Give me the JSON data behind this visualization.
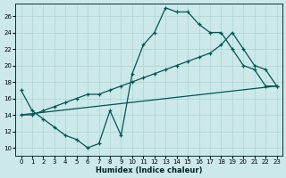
{
  "xlabel": "Humidex (Indice chaleur)",
  "bg_color": "#cce8e8",
  "line_color": "#005555",
  "grid_color": "#aad4d4",
  "xlim": [
    -0.5,
    23.5
  ],
  "ylim": [
    9.0,
    27.5
  ],
  "yticks": [
    10,
    12,
    14,
    16,
    18,
    20,
    22,
    24,
    26
  ],
  "xticks": [
    0,
    1,
    2,
    3,
    4,
    5,
    6,
    7,
    8,
    9,
    10,
    11,
    12,
    13,
    14,
    15,
    16,
    17,
    18,
    19,
    20,
    21,
    22,
    23
  ],
  "line1_x": [
    0,
    1,
    2,
    3,
    4,
    5,
    6,
    7,
    8,
    9,
    10,
    11,
    12,
    13,
    14,
    15,
    16,
    17,
    18,
    19,
    20,
    21,
    22,
    23
  ],
  "line1_y": [
    17.0,
    14.5,
    13.5,
    12.5,
    11.5,
    11.0,
    10.0,
    10.5,
    14.5,
    11.5,
    19.0,
    22.5,
    24.0,
    27.0,
    26.5,
    26.5,
    25.0,
    24.0,
    24.0,
    22.0,
    20.0,
    19.5,
    17.5,
    17.5
  ],
  "line2_x": [
    0,
    23
  ],
  "line2_y": [
    14.0,
    17.5
  ],
  "line3_x": [
    0,
    1,
    2,
    3,
    4,
    5,
    6,
    7,
    8,
    9,
    10,
    11,
    12,
    13,
    14,
    15,
    16,
    17,
    18,
    19,
    20,
    21,
    22,
    23
  ],
  "line3_y": [
    14.0,
    14.0,
    14.5,
    15.0,
    15.5,
    16.0,
    16.5,
    16.5,
    17.0,
    17.5,
    18.0,
    18.5,
    19.0,
    19.5,
    20.0,
    20.5,
    21.0,
    21.5,
    22.5,
    24.0,
    22.0,
    20.0,
    19.5,
    17.5
  ]
}
